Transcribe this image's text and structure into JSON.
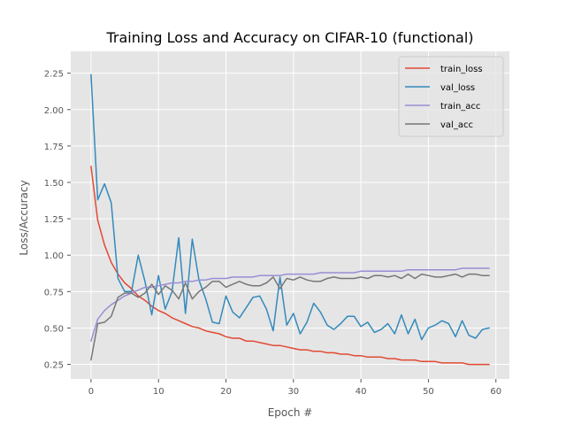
{
  "chart_data": {
    "type": "line",
    "title": "Training Loss and Accuracy on CIFAR-10 (functional)",
    "xlabel": "Epoch #",
    "ylabel": "Loss/Accuracy",
    "xlim": [
      -3,
      62
    ],
    "ylim": [
      0.15,
      2.4
    ],
    "xticks": [
      0,
      10,
      20,
      30,
      40,
      50,
      60
    ],
    "yticks": [
      0.25,
      0.5,
      0.75,
      1.0,
      1.25,
      1.5,
      1.75,
      2.0,
      2.25
    ],
    "ytick_labels": [
      "0.25",
      "0.50",
      "0.75",
      "1.00",
      "1.25",
      "1.50",
      "1.75",
      "2.00",
      "2.25"
    ],
    "grid": true,
    "legend_position": "top-right",
    "series": [
      {
        "name": "train_loss",
        "color": "#E24A33",
        "values": [
          1.61,
          1.24,
          1.07,
          0.95,
          0.87,
          0.81,
          0.77,
          0.72,
          0.69,
          0.65,
          0.62,
          0.6,
          0.57,
          0.55,
          0.53,
          0.51,
          0.5,
          0.48,
          0.47,
          0.46,
          0.44,
          0.43,
          0.43,
          0.41,
          0.41,
          0.4,
          0.39,
          0.38,
          0.38,
          0.37,
          0.36,
          0.35,
          0.35,
          0.34,
          0.34,
          0.33,
          0.33,
          0.32,
          0.32,
          0.31,
          0.31,
          0.3,
          0.3,
          0.3,
          0.29,
          0.29,
          0.28,
          0.28,
          0.28,
          0.27,
          0.27,
          0.27,
          0.26,
          0.26,
          0.26,
          0.26,
          0.25,
          0.25,
          0.25,
          0.25
        ]
      },
      {
        "name": "val_loss",
        "color": "#348ABD",
        "values": [
          2.24,
          1.38,
          1.49,
          1.36,
          0.84,
          0.75,
          0.75,
          1.0,
          0.82,
          0.59,
          0.86,
          0.63,
          0.75,
          1.12,
          0.6,
          1.11,
          0.83,
          0.7,
          0.54,
          0.53,
          0.72,
          0.61,
          0.57,
          0.64,
          0.71,
          0.72,
          0.63,
          0.48,
          0.85,
          0.52,
          0.6,
          0.46,
          0.54,
          0.67,
          0.61,
          0.52,
          0.49,
          0.53,
          0.58,
          0.58,
          0.51,
          0.54,
          0.47,
          0.49,
          0.53,
          0.46,
          0.59,
          0.46,
          0.56,
          0.42,
          0.5,
          0.52,
          0.55,
          0.53,
          0.44,
          0.55,
          0.45,
          0.43,
          0.49,
          0.5
        ]
      },
      {
        "name": "train_acc",
        "color": "#988ED5",
        "values": [
          0.41,
          0.56,
          0.62,
          0.66,
          0.69,
          0.72,
          0.74,
          0.76,
          0.78,
          0.78,
          0.79,
          0.8,
          0.81,
          0.81,
          0.82,
          0.82,
          0.83,
          0.83,
          0.84,
          0.84,
          0.84,
          0.85,
          0.85,
          0.85,
          0.85,
          0.86,
          0.86,
          0.86,
          0.86,
          0.87,
          0.87,
          0.87,
          0.87,
          0.87,
          0.88,
          0.88,
          0.88,
          0.88,
          0.88,
          0.88,
          0.89,
          0.89,
          0.89,
          0.89,
          0.89,
          0.89,
          0.89,
          0.9,
          0.9,
          0.9,
          0.9,
          0.9,
          0.9,
          0.9,
          0.9,
          0.91,
          0.91,
          0.91,
          0.91,
          0.91
        ]
      },
      {
        "name": "val_acc",
        "color": "#777777",
        "values": [
          0.28,
          0.53,
          0.54,
          0.58,
          0.71,
          0.74,
          0.74,
          0.71,
          0.74,
          0.8,
          0.73,
          0.79,
          0.76,
          0.7,
          0.81,
          0.7,
          0.75,
          0.78,
          0.82,
          0.82,
          0.78,
          0.8,
          0.82,
          0.8,
          0.79,
          0.79,
          0.81,
          0.85,
          0.77,
          0.84,
          0.83,
          0.85,
          0.83,
          0.82,
          0.82,
          0.84,
          0.85,
          0.84,
          0.84,
          0.84,
          0.85,
          0.84,
          0.86,
          0.86,
          0.85,
          0.86,
          0.84,
          0.87,
          0.84,
          0.87,
          0.86,
          0.85,
          0.85,
          0.86,
          0.87,
          0.85,
          0.87,
          0.87,
          0.86,
          0.86
        ]
      }
    ]
  }
}
